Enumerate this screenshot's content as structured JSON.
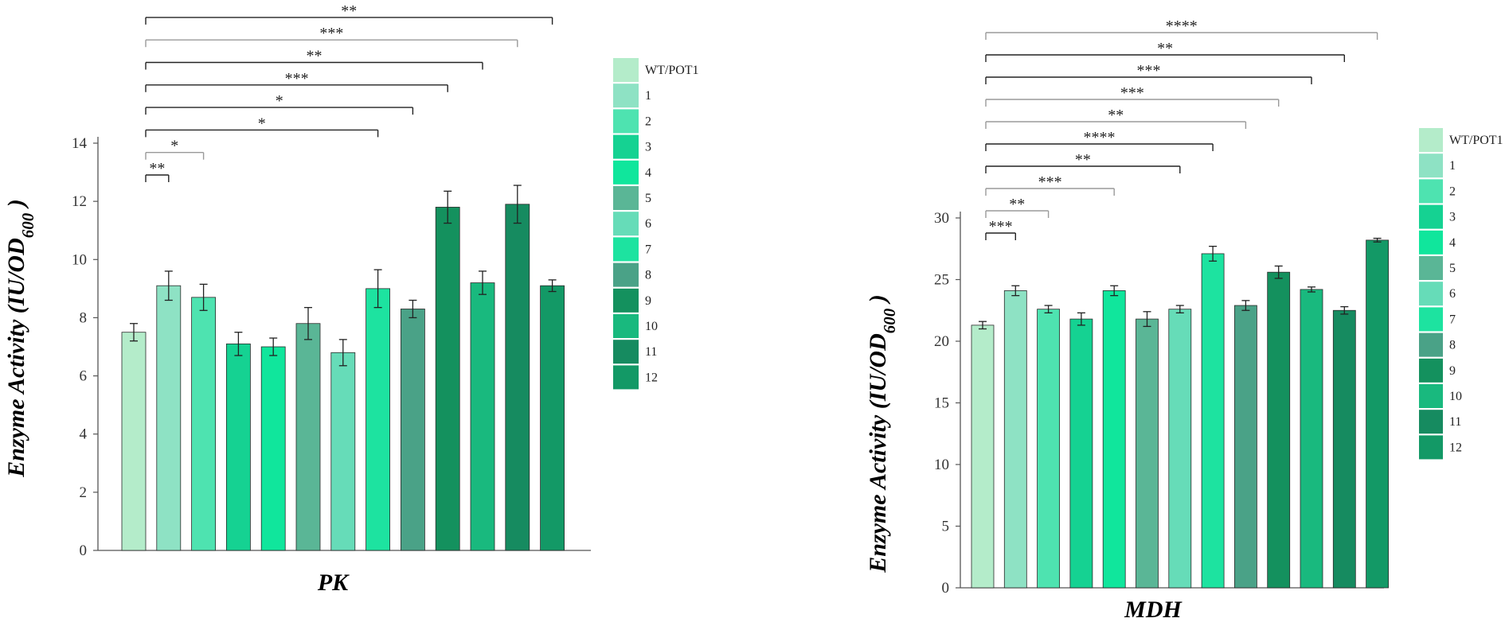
{
  "chart_data": [
    {
      "type": "bar",
      "title": "",
      "xlabel": "PK",
      "ylabel_main": "Enzyme Activity (IU/OD",
      "ylabel_sub": "600",
      "ylabel_end": " )",
      "ylim": [
        0,
        14
      ],
      "yticks": [
        "0",
        "2",
        "4",
        "6",
        "8",
        "10",
        "12",
        "14"
      ],
      "categories": [
        "WT/POT1",
        "1",
        "2",
        "3",
        "4",
        "5",
        "6",
        "7",
        "8",
        "9",
        "10",
        "11",
        "12"
      ],
      "values": [
        7.5,
        9.1,
        8.7,
        7.1,
        7.0,
        7.8,
        6.8,
        9.0,
        8.3,
        11.8,
        9.2,
        11.9,
        9.1
      ],
      "errors": [
        0.3,
        0.5,
        0.45,
        0.4,
        0.3,
        0.55,
        0.45,
        0.65,
        0.3,
        0.55,
        0.4,
        0.65,
        0.2
      ],
      "grid": false,
      "legend_placement": "right",
      "significance": [
        {
          "to": "1",
          "label": "**",
          "tone": "dark"
        },
        {
          "to": "2",
          "label": "*",
          "tone": "light"
        },
        {
          "to": "7",
          "label": "*",
          "tone": "dark"
        },
        {
          "to": "8",
          "label": "*",
          "tone": "dark"
        },
        {
          "to": "9",
          "label": "***",
          "tone": "dark"
        },
        {
          "to": "10",
          "label": "**",
          "tone": "dark"
        },
        {
          "to": "11",
          "label": "***",
          "tone": "light"
        },
        {
          "to": "12",
          "label": "**",
          "tone": "dark"
        }
      ]
    },
    {
      "type": "bar",
      "title": "",
      "xlabel": "MDH",
      "ylabel_main": "Enzyme Activity (IU/OD",
      "ylabel_sub": "600",
      "ylabel_end": " )",
      "ylim": [
        0,
        30
      ],
      "yticks": [
        "0",
        "5",
        "10",
        "15",
        "20",
        "25",
        "30"
      ],
      "categories": [
        "WT/POT1",
        "1",
        "2",
        "3",
        "4",
        "5",
        "6",
        "7",
        "8",
        "9",
        "10",
        "11",
        "12"
      ],
      "values": [
        21.3,
        24.1,
        22.6,
        21.8,
        24.1,
        21.8,
        22.6,
        27.1,
        22.9,
        25.6,
        24.2,
        22.5,
        28.2
      ],
      "errors": [
        0.3,
        0.4,
        0.3,
        0.5,
        0.4,
        0.6,
        0.3,
        0.6,
        0.4,
        0.5,
        0.2,
        0.3,
        0.15
      ],
      "grid": false,
      "legend_placement": "right",
      "significance": [
        {
          "to": "1",
          "label": "***",
          "tone": "dark"
        },
        {
          "to": "2",
          "label": "**",
          "tone": "light"
        },
        {
          "to": "4",
          "label": "***",
          "tone": "light"
        },
        {
          "to": "6",
          "label": "**",
          "tone": "dark"
        },
        {
          "to": "7",
          "label": "****",
          "tone": "dark"
        },
        {
          "to": "8",
          "label": "**",
          "tone": "light"
        },
        {
          "to": "9",
          "label": "***",
          "tone": "light"
        },
        {
          "to": "10",
          "label": "***",
          "tone": "dark"
        },
        {
          "to": "11",
          "label": "**",
          "tone": "dark"
        },
        {
          "to": "12",
          "label": "****",
          "tone": "light"
        }
      ]
    }
  ],
  "colors": {
    "bars": [
      "#b4ecca",
      "#8ee2c4",
      "#4ee3b0",
      "#15d292",
      "#10e69c",
      "#5ab696",
      "#66dcb8",
      "#1de3a0",
      "#4aa287",
      "#14915e",
      "#19b97e",
      "#168b60",
      "#139966"
    ],
    "bar_outline": "#2a2a2a",
    "axis": "#555555",
    "bracket_dark": "#222222",
    "bracket_light": "#9a9a9a"
  }
}
